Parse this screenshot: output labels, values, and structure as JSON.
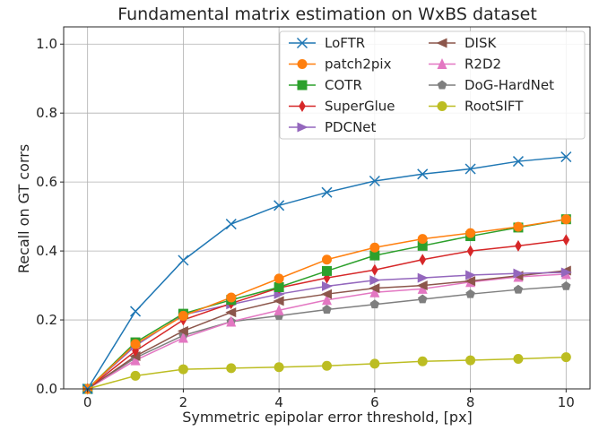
{
  "chart_data": {
    "type": "line",
    "title": "Fundamental matrix estimation on WxBS dataset",
    "xlabel": "Symmetric epipolar error threshold, [px]",
    "ylabel": "Recall on GT corrs",
    "xlim": [
      -0.5,
      10.5
    ],
    "ylim": [
      0,
      1.05
    ],
    "xticks": [
      0,
      2,
      4,
      6,
      8,
      10
    ],
    "yticks": [
      0.0,
      0.2,
      0.4,
      0.6,
      0.8,
      1.0
    ],
    "ytick_labels": [
      "0.0",
      "0.2",
      "0.4",
      "0.6",
      "0.8",
      "1.0"
    ],
    "grid": true,
    "legend_position": "top-right",
    "legend_columns": 2,
    "x": [
      0,
      1,
      2,
      3,
      4,
      5,
      6,
      7,
      8,
      9,
      10
    ],
    "series": [
      {
        "name": "LoFTR",
        "color": "#1f77b4",
        "marker": "x",
        "values": [
          0.0,
          0.225,
          0.373,
          0.478,
          0.532,
          0.57,
          0.603,
          0.623,
          0.638,
          0.66,
          0.673
        ]
      },
      {
        "name": "patch2pix",
        "color": "#ff7f0e",
        "marker": "circle",
        "values": [
          0.0,
          0.13,
          0.212,
          0.265,
          0.32,
          0.375,
          0.41,
          0.435,
          0.452,
          0.47,
          0.492
        ]
      },
      {
        "name": "COTR",
        "color": "#2ca02c",
        "marker": "square",
        "values": [
          0.0,
          0.135,
          0.218,
          0.258,
          0.295,
          0.342,
          0.387,
          0.415,
          0.443,
          0.468,
          0.492
        ]
      },
      {
        "name": "SuperGlue",
        "color": "#d62728",
        "marker": "diamond",
        "values": [
          0.0,
          0.11,
          0.2,
          0.248,
          0.293,
          0.322,
          0.345,
          0.375,
          0.4,
          0.415,
          0.432
        ]
      },
      {
        "name": "PDCNet",
        "color": "#9467bd",
        "marker": "triangle-right",
        "values": [
          0.0,
          0.125,
          0.215,
          0.245,
          0.275,
          0.298,
          0.315,
          0.322,
          0.33,
          0.335,
          0.338
        ]
      },
      {
        "name": "DISK",
        "color": "#8c564b",
        "marker": "triangle-left",
        "values": [
          0.0,
          0.095,
          0.168,
          0.222,
          0.255,
          0.275,
          0.292,
          0.3,
          0.313,
          0.328,
          0.343
        ]
      },
      {
        "name": "R2D2",
        "color": "#e377c2",
        "marker": "triangle-up",
        "values": [
          0.0,
          0.083,
          0.148,
          0.195,
          0.228,
          0.258,
          0.28,
          0.29,
          0.31,
          0.325,
          0.333
        ]
      },
      {
        "name": "DoG-HardNet",
        "color": "#7f7f7f",
        "marker": "pentagon",
        "values": [
          0.0,
          0.09,
          0.155,
          0.195,
          0.212,
          0.23,
          0.245,
          0.26,
          0.275,
          0.288,
          0.298
        ]
      },
      {
        "name": "RootSIFT",
        "color": "#bcbd22",
        "marker": "circle",
        "values": [
          0.0,
          0.038,
          0.057,
          0.06,
          0.063,
          0.067,
          0.073,
          0.08,
          0.083,
          0.087,
          0.092
        ]
      }
    ]
  }
}
